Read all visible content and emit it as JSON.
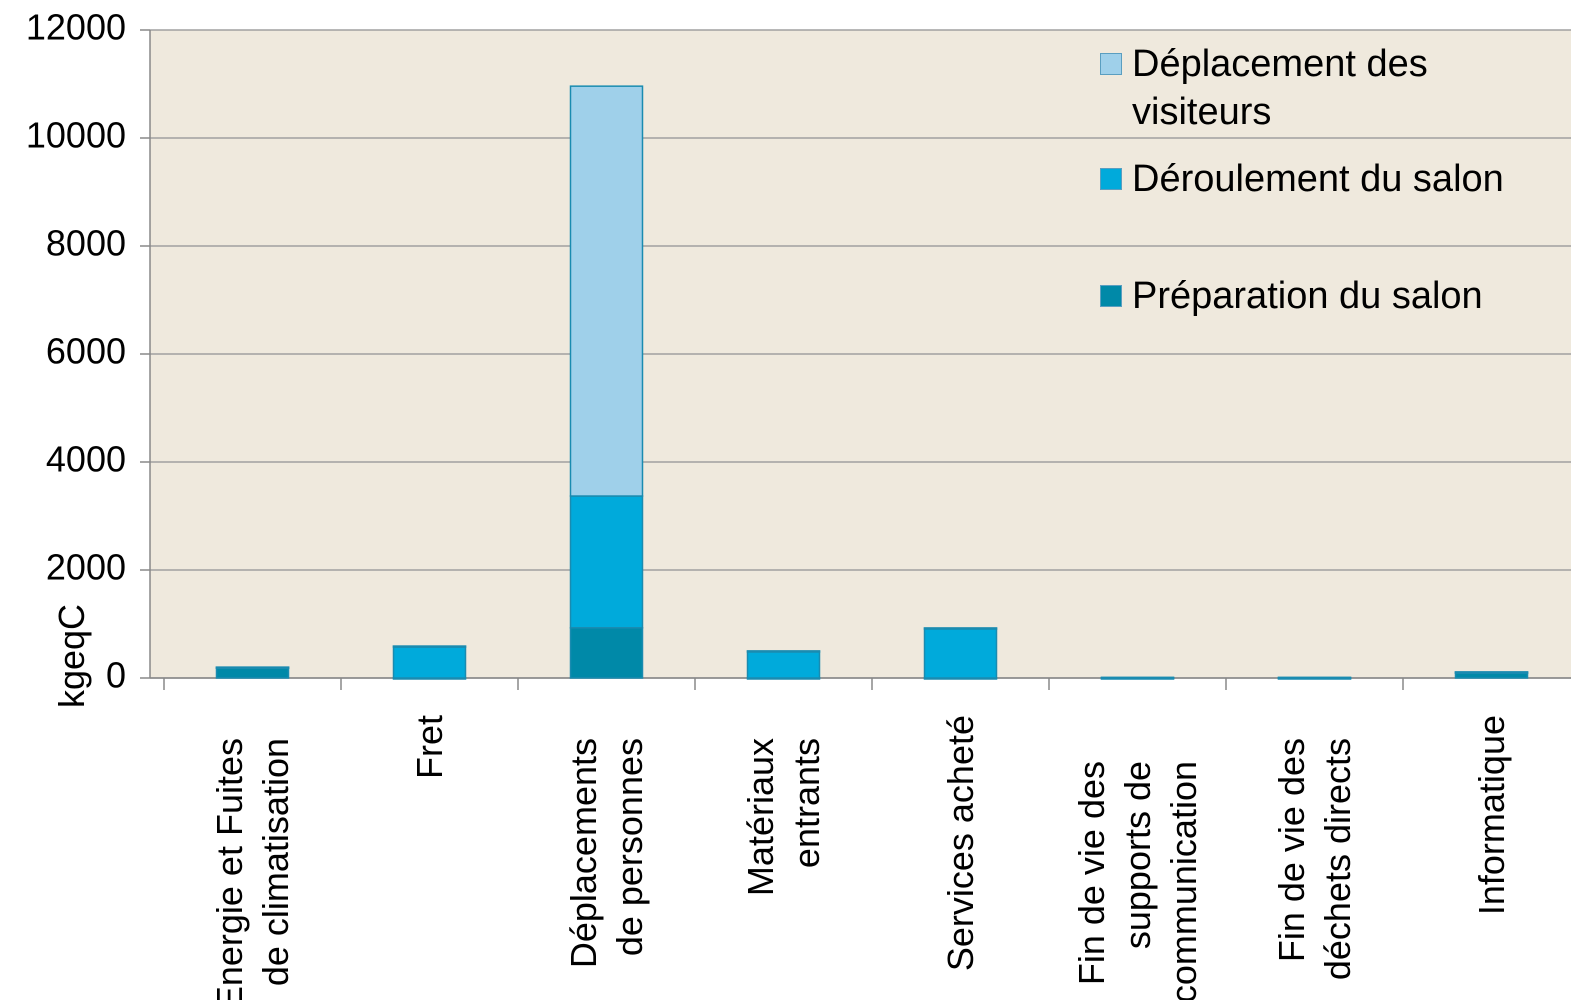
{
  "chart_data": {
    "type": "bar",
    "stacked": true,
    "y_label": "kgeqC",
    "categories": [
      "Energie et Fuites de climatisation",
      "Fret",
      "Déplacements de personnes",
      "Matériaux entrants",
      "Services acheté",
      "Fin de vie des supports de communication",
      "Fin de vie des déchets directs",
      "Informatique"
    ],
    "series": [
      {
        "name": "Préparation du salon",
        "color": "#0089a8",
        "values": [
          200,
          0,
          930,
          0,
          0,
          0,
          0,
          110
        ]
      },
      {
        "name": "Déroulement du salon",
        "color": "#00aadb",
        "values": [
          0,
          590,
          2440,
          500,
          925,
          10,
          10,
          0
        ]
      },
      {
        "name": "Déplacement des visiteurs",
        "color": "#9fd0ea",
        "values": [
          0,
          0,
          7590,
          0,
          0,
          0,
          0,
          0
        ]
      }
    ],
    "ylim": [
      0,
      12000
    ],
    "yticks": [
      0,
      2000,
      4000,
      6000,
      8000,
      10000,
      12000
    ],
    "grid": true
  }
}
